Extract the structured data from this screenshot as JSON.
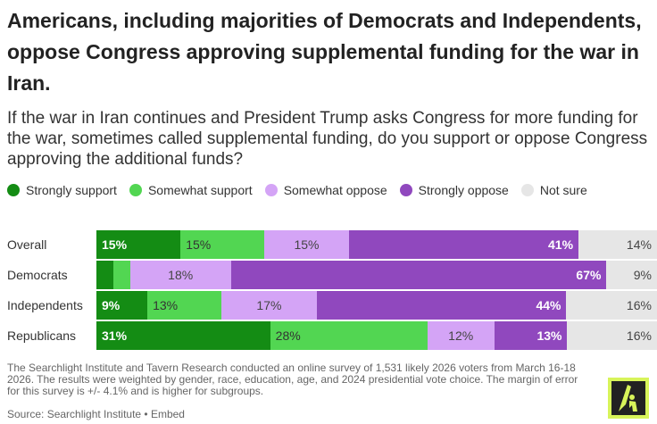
{
  "title": "Americans, including majorities of Democrats and Independents, oppose Congress approving supplemental funding for the war in Iran.",
  "subtitle": "If the war in Iran continues and President Trump asks Congress for more funding for the war, sometimes called supplemental funding, do you support or oppose Congress approving the additional funds?",
  "chart_data": {
    "type": "bar",
    "stacked": true,
    "orientation": "horizontal",
    "legend_position": "top",
    "series": [
      {
        "name": "Strongly support",
        "color": "#148c14",
        "values": [
          15,
          3,
          9,
          31
        ],
        "labels": [
          "15%",
          "",
          "9%",
          "31%"
        ]
      },
      {
        "name": "Somewhat support",
        "color": "#52d652",
        "values": [
          15,
          3,
          13,
          28
        ],
        "labels": [
          "15%",
          "",
          "13%",
          "28%"
        ]
      },
      {
        "name": "Somewhat oppose",
        "color": "#d4a4f6",
        "values": [
          15,
          18,
          17,
          12
        ],
        "labels": [
          "15%",
          "18%",
          "17%",
          "12%"
        ]
      },
      {
        "name": "Strongly oppose",
        "color": "#9048be",
        "values": [
          41,
          67,
          44,
          13
        ],
        "labels": [
          "41%",
          "67%",
          "44%",
          "13%"
        ]
      },
      {
        "name": "Not sure",
        "color": "#e6e6e6",
        "values": [
          14,
          9,
          16,
          16
        ],
        "labels": [
          "14%",
          "9%",
          "16%",
          "16%"
        ]
      }
    ],
    "categories": [
      "Overall",
      "Democrats",
      "Independents",
      "Republicans"
    ]
  },
  "note": "The Searchlight Institute and Tavern Research conducted an online survey of 1,531 likely 2026 voters from March 16-18 2026. The results were weighted by gender, race, education, age, and 2024 presidential vote choice. The margin of error for this survey is +/- 4.1% and is higher for subgroups.",
  "source": "Source: Searchlight Institute • Embed"
}
